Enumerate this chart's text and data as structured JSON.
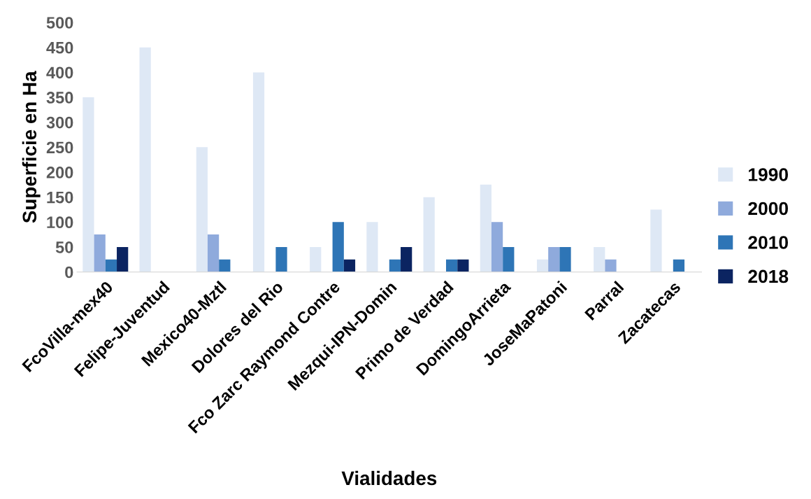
{
  "chart_data": {
    "type": "bar",
    "xlabel": "Vialidades",
    "ylabel": "Superficie en Ha",
    "categories": [
      "FcoVilla-mex40",
      "Felipe-Juventud",
      "Mexico40-Mztl",
      "Dolores del Rio",
      "Fco Zarc Raymond Contre",
      "Mezqui-IPN-Domin",
      "Primo de Verdad",
      "DomingoArrieta",
      "JoseMaPatoni",
      "Parral",
      "Zacatecas"
    ],
    "series": [
      {
        "name": "1990",
        "color": "#dee8f5",
        "values": [
          350,
          450,
          250,
          400,
          50,
          100,
          150,
          175,
          25,
          50,
          125
        ]
      },
      {
        "name": "2000",
        "color": "#8faadc",
        "values": [
          75,
          0,
          75,
          0,
          0,
          0,
          0,
          100,
          50,
          25,
          0
        ]
      },
      {
        "name": "2010",
        "color": "#2e75b6",
        "values": [
          25,
          0,
          25,
          50,
          100,
          25,
          25,
          50,
          50,
          0,
          25
        ]
      },
      {
        "name": "2018",
        "color": "#0b2461",
        "values": [
          50,
          0,
          0,
          0,
          25,
          50,
          25,
          0,
          0,
          0,
          0
        ]
      }
    ],
    "ylim": [
      0,
      500
    ],
    "yticks": [
      0,
      50,
      100,
      150,
      200,
      250,
      300,
      350,
      400,
      450,
      500
    ],
    "grid": false,
    "legend": "right"
  }
}
